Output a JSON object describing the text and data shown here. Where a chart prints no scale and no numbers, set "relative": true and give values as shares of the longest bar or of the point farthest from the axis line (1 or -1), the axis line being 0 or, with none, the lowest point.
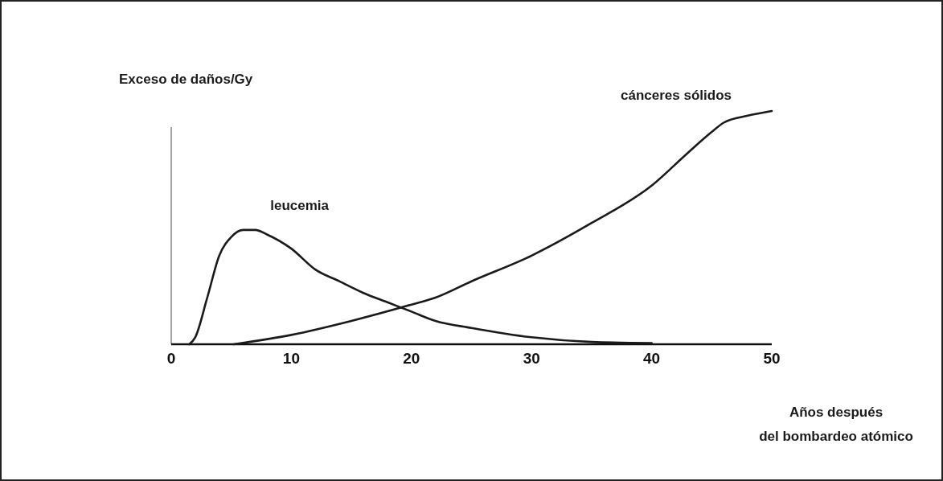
{
  "chart_data": {
    "type": "line",
    "relative": true,
    "ylabel": "Exceso de daños/Gy",
    "xlabel": "Años después\ndel bombardeo atómico",
    "xlim": [
      0,
      50
    ],
    "xticks": [
      0,
      10,
      20,
      30,
      40,
      50
    ],
    "grid": false,
    "marker": "none",
    "line_style": "solid",
    "series": [
      {
        "name": "leucemia",
        "color": "#1a1a1a",
        "x": [
          1.5,
          2,
          3,
          4,
          5,
          6,
          7,
          8,
          10,
          12,
          14,
          16,
          18,
          20,
          22,
          25,
          30,
          35,
          40
        ],
        "values": [
          0,
          0.03,
          0.2,
          0.38,
          0.46,
          0.49,
          0.49,
          0.47,
          0.41,
          0.32,
          0.27,
          0.22,
          0.18,
          0.14,
          0.1,
          0.07,
          0.03,
          0.01,
          0.005
        ]
      },
      {
        "name": "cánceres sólidos",
        "color": "#1a1a1a",
        "x": [
          5.2,
          10,
          15,
          20,
          22,
          25,
          30,
          35,
          40,
          43,
          45,
          46,
          48,
          50
        ],
        "values": [
          0,
          0.04,
          0.1,
          0.17,
          0.2,
          0.27,
          0.38,
          0.52,
          0.68,
          0.82,
          0.91,
          0.95,
          0.98,
          1
        ]
      }
    ]
  }
}
